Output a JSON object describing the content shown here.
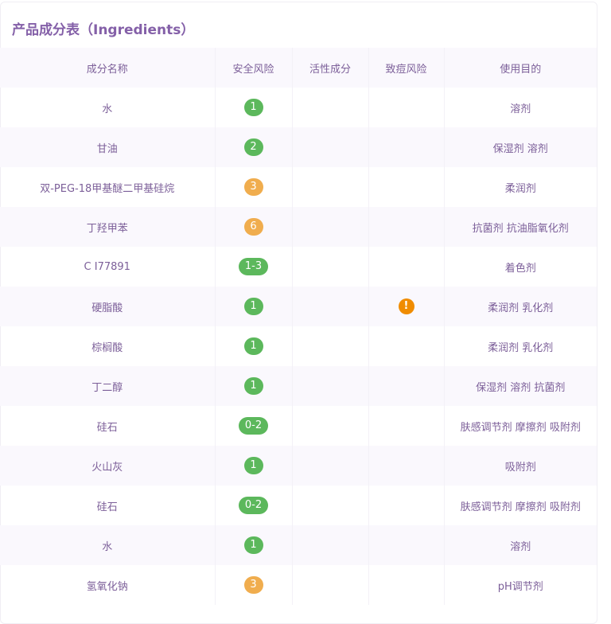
{
  "title": "产品成分表（Ingredients）",
  "headers": [
    "成分名称",
    "安全风险",
    "活性成分",
    "致痘风险",
    "使用目的"
  ],
  "colors": {
    "low": "#5cb85c",
    "mid": "#f0ad4e",
    "warn": "#f08c00"
  },
  "rows": [
    {
      "name": "水",
      "risk": "1",
      "level": "low",
      "active": "",
      "acne": false,
      "purpose": "溶剂"
    },
    {
      "name": "甘油",
      "risk": "2",
      "level": "low",
      "active": "",
      "acne": false,
      "purpose": "保湿剂 溶剂"
    },
    {
      "name": "双-PEG-18甲基醚二甲基硅烷",
      "risk": "3",
      "level": "mid",
      "active": "",
      "acne": false,
      "purpose": "柔润剂"
    },
    {
      "name": "丁羟甲苯",
      "risk": "6",
      "level": "mid",
      "active": "",
      "acne": false,
      "purpose": "抗菌剂 抗油脂氧化剂"
    },
    {
      "name": "C I77891",
      "risk": "1-3",
      "level": "low",
      "active": "",
      "acne": false,
      "purpose": "着色剂"
    },
    {
      "name": "硬脂酸",
      "risk": "1",
      "level": "low",
      "active": "",
      "acne": true,
      "acne_icon": "!",
      "purpose": "柔润剂 乳化剂"
    },
    {
      "name": "棕榈酸",
      "risk": "1",
      "level": "low",
      "active": "",
      "acne": false,
      "purpose": "柔润剂 乳化剂"
    },
    {
      "name": "丁二醇",
      "risk": "1",
      "level": "low",
      "active": "",
      "acne": false,
      "purpose": "保湿剂 溶剂 抗菌剂"
    },
    {
      "name": "硅石",
      "risk": "0-2",
      "level": "low",
      "active": "",
      "acne": false,
      "purpose": "肤感调节剂 摩擦剂 吸附剂"
    },
    {
      "name": "火山灰",
      "risk": "1",
      "level": "low",
      "active": "",
      "acne": false,
      "purpose": "吸附剂"
    },
    {
      "name": "硅石",
      "risk": "0-2",
      "level": "low",
      "active": "",
      "acne": false,
      "purpose": "肤感调节剂 摩擦剂 吸附剂"
    },
    {
      "name": "水",
      "risk": "1",
      "level": "low",
      "active": "",
      "acne": false,
      "purpose": "溶剂"
    },
    {
      "name": "氢氧化钠",
      "risk": "3",
      "level": "mid",
      "active": "",
      "acne": false,
      "purpose": "pH调节剂"
    }
  ]
}
